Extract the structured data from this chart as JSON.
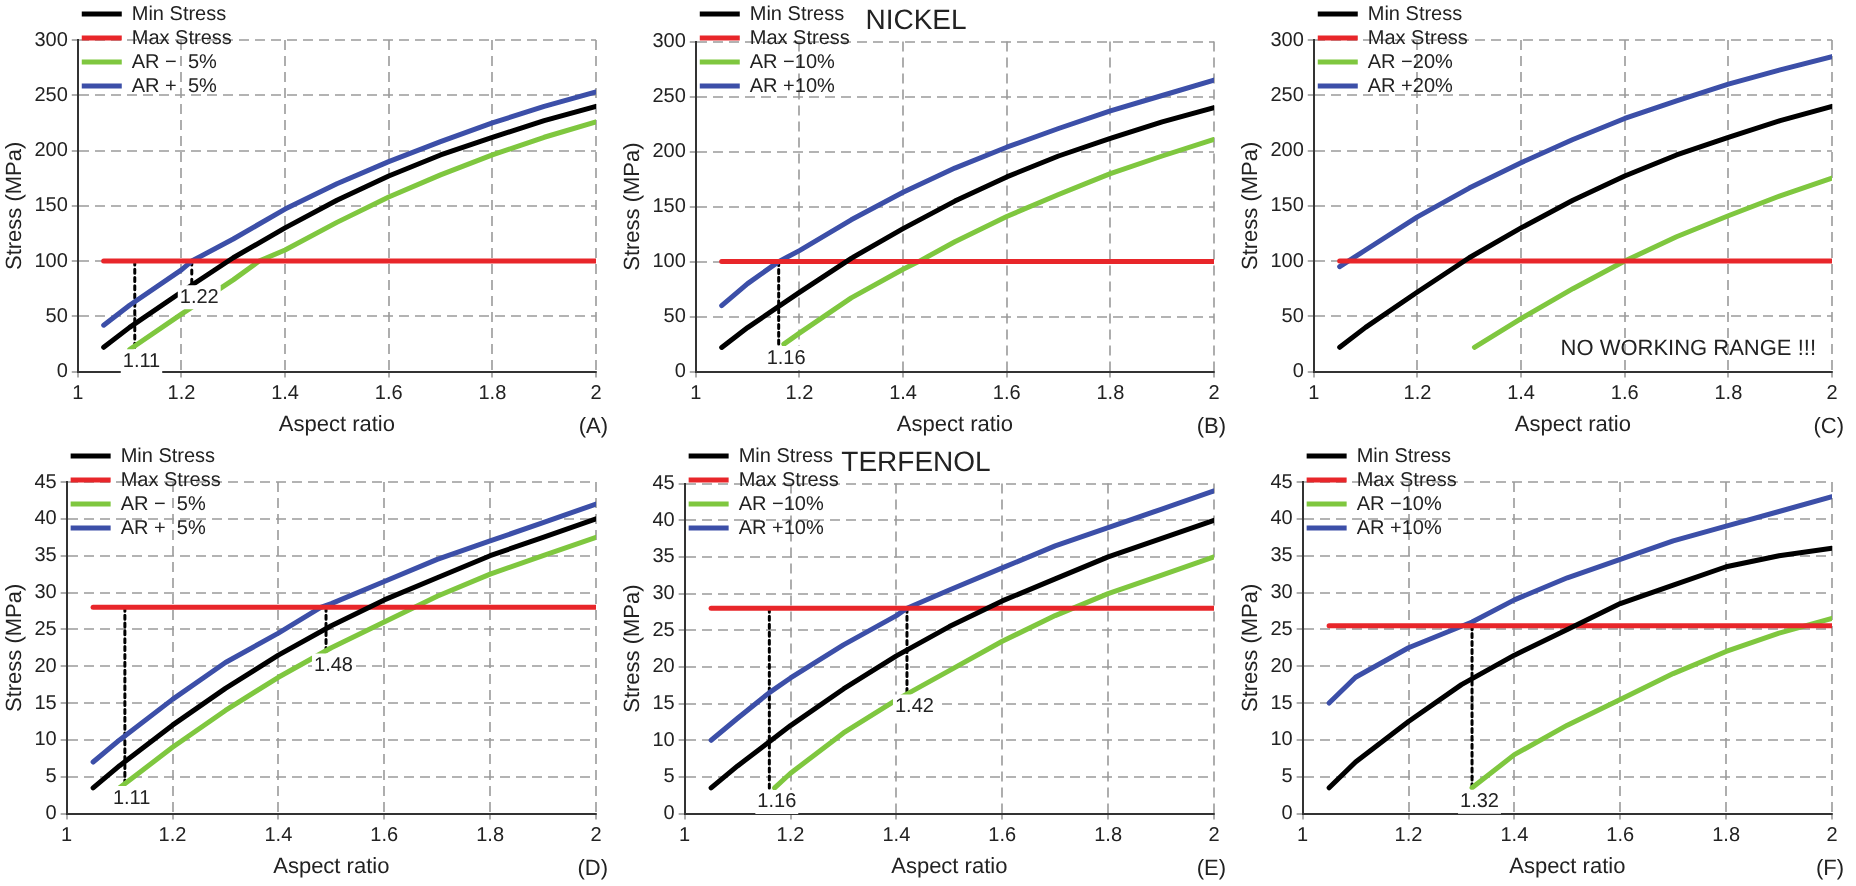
{
  "chart_data": [
    {
      "type": "line",
      "xlabel": "Aspect ratio",
      "ylabel": "Stress (MPa)",
      "xlim": [
        1,
        2
      ],
      "xticks": [
        1,
        1.2,
        1.4,
        1.6,
        1.8,
        2
      ],
      "ylim": [
        0,
        300
      ],
      "yticks": [
        0,
        50,
        100,
        150,
        200,
        250,
        300
      ],
      "grid": true,
      "legend": "top left",
      "marker": "none",
      "annotations": [
        "(A)",
        {
          "text": "1.11",
          "x": 1.11,
          "y": 22
        },
        {
          "text": "1.22",
          "x": 1.22,
          "y": 80
        }
      ],
      "series": [
        {
          "name": "Min Stress",
          "color": "#000000",
          "x": [
            1.05,
            1.1,
            1.2,
            1.3,
            1.4,
            1.5,
            1.6,
            1.7,
            1.8,
            1.9,
            2
          ],
          "values": [
            22,
            40,
            72,
            103,
            130,
            155,
            177,
            196,
            212,
            227,
            240
          ]
        },
        {
          "name": "Max Stress",
          "color": "#e8262a",
          "x": [
            1.05,
            2
          ],
          "values": [
            100,
            100
          ]
        },
        {
          "name": "AR −  5%",
          "color": "#7fc73f",
          "x": [
            1.1,
            1.2,
            1.3,
            1.35,
            1.4,
            1.5,
            1.6,
            1.7,
            1.8,
            1.9,
            2
          ],
          "values": [
            20,
            52,
            83,
            100,
            110,
            135,
            158,
            178,
            196,
            212,
            226
          ]
        },
        {
          "name": "AR +  5%",
          "color": "#3c4fa8",
          "x": [
            1.05,
            1.1,
            1.2,
            1.22,
            1.3,
            1.4,
            1.5,
            1.6,
            1.7,
            1.8,
            1.9,
            2
          ],
          "values": [
            42,
            60,
            92,
            100,
            120,
            147,
            170,
            190,
            208,
            225,
            240,
            253
          ]
        },
        {
          "color": "#000000",
          "line_style": "dotted",
          "x": [
            1.11,
            1.11
          ],
          "values": [
            22,
            100
          ]
        },
        {
          "color": "#000000",
          "line_style": "dotted",
          "x": [
            1.22,
            1.22
          ],
          "values": [
            80,
            100
          ]
        }
      ]
    },
    {
      "type": "line",
      "title": "NICKEL",
      "xlabel": "Aspect ratio",
      "ylabel": "Stress (MPa)",
      "xlim": [
        1,
        2
      ],
      "xticks": [
        1,
        1.2,
        1.4,
        1.6,
        1.8,
        2
      ],
      "ylim": [
        0,
        300
      ],
      "yticks": [
        0,
        50,
        100,
        150,
        200,
        250,
        300
      ],
      "grid": true,
      "legend": "top left",
      "marker": "none",
      "annotations": [
        "(B)",
        {
          "text": "1.16",
          "x": 1.16,
          "y": 25
        }
      ],
      "series": [
        {
          "name": "Min Stress",
          "color": "#000000",
          "x": [
            1.05,
            1.1,
            1.2,
            1.3,
            1.4,
            1.5,
            1.6,
            1.7,
            1.8,
            1.9,
            2
          ],
          "values": [
            22,
            40,
            72,
            103,
            130,
            155,
            177,
            196,
            212,
            227,
            240
          ]
        },
        {
          "name": "Max Stress",
          "color": "#e8262a",
          "x": [
            1.05,
            2
          ],
          "values": [
            100,
            100
          ]
        },
        {
          "name": "AR −10%",
          "color": "#7fc73f",
          "x": [
            1.17,
            1.2,
            1.3,
            1.4,
            1.43,
            1.5,
            1.6,
            1.7,
            1.8,
            1.9,
            2
          ],
          "values": [
            25,
            35,
            67,
            93,
            100,
            118,
            141,
            161,
            180,
            196,
            211
          ]
        },
        {
          "name": "AR +10%",
          "color": "#3c4fa8",
          "x": [
            1.05,
            1.1,
            1.16,
            1.2,
            1.3,
            1.4,
            1.5,
            1.6,
            1.7,
            1.8,
            1.9,
            2
          ],
          "values": [
            60,
            80,
            100,
            110,
            138,
            163,
            185,
            204,
            221,
            237,
            251,
            265
          ]
        },
        {
          "color": "#000000",
          "line_style": "dotted",
          "x": [
            1.16,
            1.16
          ],
          "values": [
            25,
            100
          ]
        }
      ]
    },
    {
      "type": "line",
      "xlabel": "Aspect ratio",
      "ylabel": "Stress (MPa)",
      "xlim": [
        1,
        2
      ],
      "xticks": [
        1,
        1.2,
        1.4,
        1.6,
        1.8,
        2
      ],
      "ylim": [
        0,
        300
      ],
      "yticks": [
        0,
        50,
        100,
        150,
        200,
        250,
        300
      ],
      "grid": true,
      "legend": "top left",
      "marker": "none",
      "annotations": [
        "(C)",
        "NO WORKING RANGE !!!"
      ],
      "series": [
        {
          "name": "Min Stress",
          "color": "#000000",
          "x": [
            1.05,
            1.1,
            1.2,
            1.3,
            1.4,
            1.5,
            1.6,
            1.7,
            1.8,
            1.9,
            2
          ],
          "values": [
            22,
            40,
            72,
            103,
            130,
            155,
            177,
            196,
            212,
            227,
            240
          ]
        },
        {
          "name": "Max Stress",
          "color": "#e8262a",
          "x": [
            1.05,
            2
          ],
          "values": [
            100,
            100
          ]
        },
        {
          "name": "AR −20%",
          "color": "#7fc73f",
          "x": [
            1.31,
            1.4,
            1.5,
            1.6,
            1.7,
            1.8,
            1.9,
            2
          ],
          "values": [
            22,
            48,
            75,
            100,
            122,
            141,
            159,
            175
          ]
        },
        {
          "name": "AR +20%",
          "color": "#3c4fa8",
          "x": [
            1.05,
            1.1,
            1.2,
            1.3,
            1.4,
            1.5,
            1.6,
            1.7,
            1.8,
            1.9,
            2
          ],
          "values": [
            95,
            110,
            140,
            166,
            189,
            210,
            229,
            245,
            260,
            273,
            285
          ]
        }
      ]
    },
    {
      "type": "line",
      "xlabel": "Aspect ratio",
      "ylabel": "Stress (MPa)",
      "xlim": [
        1,
        2
      ],
      "xticks": [
        1,
        1.2,
        1.4,
        1.6,
        1.8,
        2
      ],
      "ylim": [
        0,
        45
      ],
      "yticks": [
        0,
        5,
        10,
        15,
        20,
        25,
        30,
        35,
        40,
        45
      ],
      "grid": true,
      "legend": "top left",
      "marker": "none",
      "annotations": [
        "(D)",
        {
          "text": "1.11",
          "x": 1.11,
          "y": 4
        },
        {
          "text": "1.48",
          "x": 1.49,
          "y": 22
        }
      ],
      "series": [
        {
          "name": "Min Stress",
          "color": "#000000",
          "x": [
            1.05,
            1.1,
            1.2,
            1.3,
            1.4,
            1.5,
            1.6,
            1.7,
            1.8,
            1.9,
            2
          ],
          "values": [
            3.5,
            6.5,
            12,
            17,
            21.5,
            25.5,
            29,
            32,
            35,
            37.5,
            40
          ]
        },
        {
          "name": "Max Stress",
          "color": "#e8262a",
          "x": [
            1.05,
            2
          ],
          "values": [
            28,
            28
          ]
        },
        {
          "name": "AR −  5%",
          "color": "#7fc73f",
          "x": [
            1.1,
            1.2,
            1.3,
            1.4,
            1.5,
            1.6,
            1.7,
            1.8,
            1.9,
            2
          ],
          "values": [
            3.5,
            9,
            14,
            18.5,
            22.5,
            26,
            29.5,
            32.5,
            35,
            37.5
          ]
        },
        {
          "name": "AR +  5%",
          "color": "#3c4fa8",
          "x": [
            1.05,
            1.1,
            1.2,
            1.3,
            1.4,
            1.48,
            1.5,
            1.6,
            1.7,
            1.8,
            1.9,
            2
          ],
          "values": [
            7,
            10,
            15.5,
            20.5,
            24.5,
            28,
            28.5,
            31.5,
            34.5,
            37,
            39.5,
            42
          ]
        },
        {
          "color": "#000000",
          "line_style": "dotted",
          "x": [
            1.11,
            1.11
          ],
          "values": [
            4,
            28
          ]
        },
        {
          "color": "#000000",
          "line_style": "dotted",
          "x": [
            1.49,
            1.49
          ],
          "values": [
            22,
            28
          ]
        }
      ]
    },
    {
      "type": "line",
      "title": "TERFENOL",
      "xlabel": "Aspect ratio",
      "ylabel": "Stress (MPa)",
      "xlim": [
        1,
        2
      ],
      "xticks": [
        1,
        1.2,
        1.4,
        1.6,
        1.8,
        2
      ],
      "ylim": [
        0,
        45
      ],
      "yticks": [
        0,
        5,
        10,
        15,
        20,
        25,
        30,
        35,
        40,
        45
      ],
      "grid": true,
      "legend": "top left",
      "marker": "none",
      "annotations": [
        "(E)",
        {
          "text": "1.16",
          "x": 1.16,
          "y": 3.5
        },
        {
          "text": "1.42",
          "x": 1.42,
          "y": 16.5
        }
      ],
      "series": [
        {
          "name": "Min Stress",
          "color": "#000000",
          "x": [
            1.05,
            1.1,
            1.2,
            1.3,
            1.4,
            1.5,
            1.6,
            1.7,
            1.8,
            1.9,
            2
          ],
          "values": [
            3.5,
            6.5,
            12,
            17,
            21.5,
            25.5,
            29,
            32,
            35,
            37.5,
            40
          ]
        },
        {
          "name": "Max Stress",
          "color": "#e8262a",
          "x": [
            1.05,
            2
          ],
          "values": [
            28,
            28
          ]
        },
        {
          "name": "AR −10%",
          "color": "#7fc73f",
          "x": [
            1.17,
            1.2,
            1.3,
            1.4,
            1.5,
            1.6,
            1.7,
            1.8,
            1.9,
            2
          ],
          "values": [
            3.5,
            5.5,
            11,
            15.5,
            19.5,
            23.5,
            27,
            30,
            32.5,
            35
          ]
        },
        {
          "name": "AR +10%",
          "color": "#3c4fa8",
          "x": [
            1.05,
            1.1,
            1.16,
            1.2,
            1.3,
            1.4,
            1.42,
            1.5,
            1.6,
            1.7,
            1.8,
            1.9,
            2
          ],
          "values": [
            10,
            13,
            16.5,
            18.5,
            23,
            27,
            28,
            30.5,
            33.5,
            36.5,
            39,
            41.5,
            44
          ]
        },
        {
          "color": "#000000",
          "line_style": "dotted",
          "x": [
            1.16,
            1.16
          ],
          "values": [
            3.5,
            28
          ]
        },
        {
          "color": "#000000",
          "line_style": "dotted",
          "x": [
            1.42,
            1.42
          ],
          "values": [
            16.5,
            28
          ]
        }
      ]
    },
    {
      "type": "line",
      "xlabel": "Aspect ratio",
      "ylabel": "Stress (MPa)",
      "xlim": [
        1,
        2
      ],
      "xticks": [
        1,
        1.2,
        1.4,
        1.6,
        1.8,
        2
      ],
      "ylim": [
        0,
        45
      ],
      "yticks": [
        0,
        5,
        10,
        15,
        20,
        25,
        30,
        35,
        40,
        45
      ],
      "grid": true,
      "legend": "top left",
      "marker": "none",
      "annotations": [
        "(F)",
        {
          "text": "1.32",
          "x": 1.32,
          "y": 3.5
        }
      ],
      "series": [
        {
          "name": "Min Stress",
          "color": "#000000",
          "x": [
            1.05,
            1.1,
            1.2,
            1.3,
            1.4,
            1.5,
            1.6,
            1.7,
            1.8,
            1.9,
            2
          ],
          "values": [
            3.5,
            7,
            12.5,
            17.5,
            21.5,
            25,
            28.5,
            31,
            33.5,
            35,
            36
          ]
        },
        {
          "name": "Max Stress",
          "color": "#e8262a",
          "x": [
            1.05,
            2
          ],
          "values": [
            25.5,
            25.5
          ]
        },
        {
          "name": "AR −10%",
          "color": "#7fc73f",
          "x": [
            1.32,
            1.4,
            1.5,
            1.6,
            1.7,
            1.8,
            1.9,
            2
          ],
          "values": [
            3.5,
            8,
            12,
            15.5,
            19,
            22,
            24.5,
            26.5
          ]
        },
        {
          "name": "AR +10%",
          "color": "#3c4fa8",
          "x": [
            1.05,
            1.1,
            1.2,
            1.32,
            1.4,
            1.5,
            1.6,
            1.7,
            1.8,
            1.9,
            2
          ],
          "values": [
            15,
            18.5,
            22.5,
            26,
            29,
            32,
            34.5,
            37,
            39,
            41,
            43
          ]
        },
        {
          "color": "#000000",
          "line_style": "dotted",
          "x": [
            1.32,
            1.32
          ],
          "values": [
            3.5,
            25.5
          ]
        }
      ]
    }
  ]
}
